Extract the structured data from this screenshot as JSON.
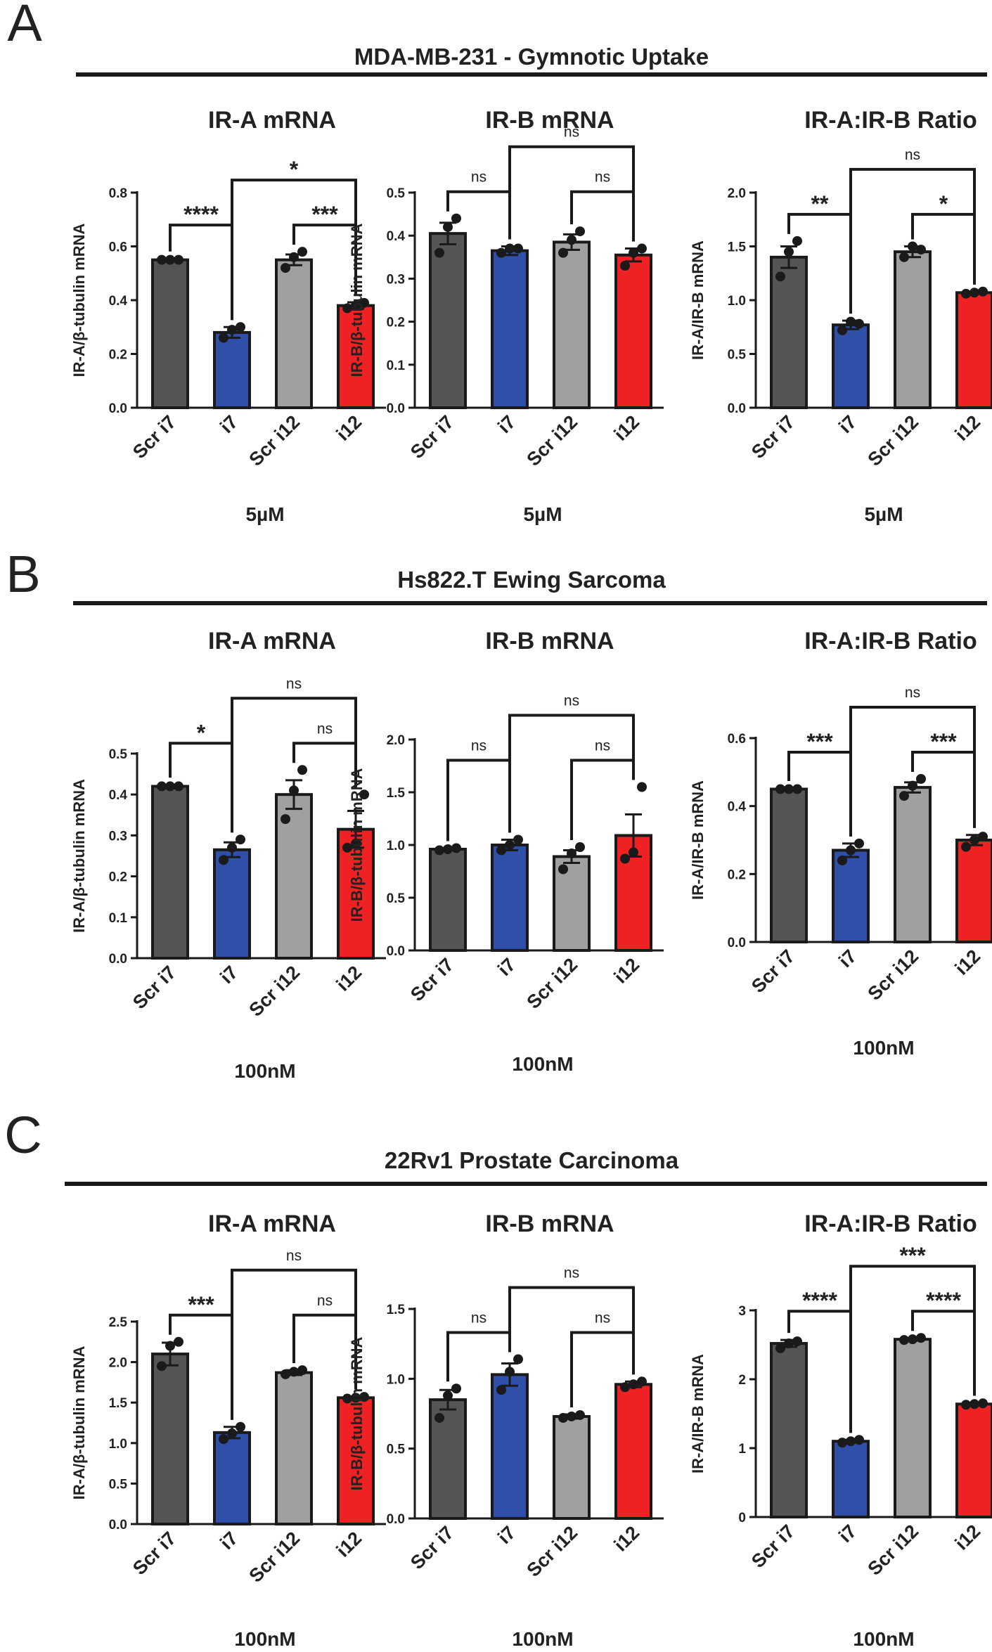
{
  "chart_data": [
    {
      "panel": "A",
      "section_title": "MDA-MB-231 - Gymnotic Uptake",
      "charts": [
        {
          "type": "bar",
          "title": "IR-A mRNA",
          "ylabel": "IR-A/β-tubulin mRNA",
          "xlabel": "5µM",
          "categories": [
            "Scr i7",
            "i7",
            "Scr i12",
            "i12"
          ],
          "values": [
            0.55,
            0.28,
            0.55,
            0.38
          ],
          "errors": [
            0.005,
            0.02,
            0.02,
            0.012
          ],
          "points": [
            [
              0.55,
              0.55,
              0.55
            ],
            [
              0.26,
              0.29,
              0.3
            ],
            [
              0.52,
              0.56,
              0.58
            ],
            [
              0.37,
              0.38,
              0.39
            ]
          ],
          "ylim": [
            0,
            0.8
          ],
          "ticks": [
            0.0,
            0.2,
            0.4,
            0.6,
            0.8
          ],
          "tick_labels": [
            "0.0",
            "0.2",
            "0.4",
            "0.6",
            "0.8"
          ],
          "annotations": [
            {
              "from": 0,
              "to": 1,
              "label": "****",
              "level": 1
            },
            {
              "from": 2,
              "to": 3,
              "label": "***",
              "level": 1
            },
            {
              "from": 1,
              "to": 3,
              "label": "*",
              "level": 2
            }
          ]
        },
        {
          "type": "bar",
          "title": "IR-B mRNA",
          "ylabel": "IR-B/β-tubulin mRNA",
          "xlabel": "5µM",
          "categories": [
            "Scr i7",
            "i7",
            "Scr i12",
            "i12"
          ],
          "values": [
            0.405,
            0.365,
            0.385,
            0.355
          ],
          "errors": [
            0.025,
            0.01,
            0.018,
            0.015
          ],
          "points": [
            [
              0.36,
              0.42,
              0.44
            ],
            [
              0.36,
              0.37,
              0.37
            ],
            [
              0.36,
              0.39,
              0.41
            ],
            [
              0.33,
              0.36,
              0.37
            ]
          ],
          "ylim": [
            0,
            0.5
          ],
          "ticks": [
            0.0,
            0.1,
            0.2,
            0.3,
            0.4,
            0.5
          ],
          "tick_labels": [
            "0.0",
            "0.1",
            "0.2",
            "0.3",
            "0.4",
            "0.5"
          ],
          "annotations": [
            {
              "from": 0,
              "to": 1,
              "label": "ns",
              "level": 1
            },
            {
              "from": 2,
              "to": 3,
              "label": "ns",
              "level": 1
            },
            {
              "from": 1,
              "to": 3,
              "label": "ns",
              "level": 2
            }
          ]
        },
        {
          "type": "bar",
          "title": "IR-A:IR-B Ratio",
          "ylabel": "IR-A/IR-B mRNA",
          "xlabel": "5µM",
          "categories": [
            "Scr i7",
            "i7",
            "Scr i12",
            "i12"
          ],
          "values": [
            1.4,
            0.77,
            1.45,
            1.07
          ],
          "errors": [
            0.1,
            0.04,
            0.05,
            0.01
          ],
          "points": [
            [
              1.22,
              1.45,
              1.55
            ],
            [
              0.72,
              0.8,
              0.78
            ],
            [
              1.4,
              1.5,
              1.47
            ],
            [
              1.06,
              1.07,
              1.08
            ]
          ],
          "ylim": [
            0,
            2.0
          ],
          "ticks": [
            0.0,
            0.5,
            1.0,
            1.5,
            2.0
          ],
          "tick_labels": [
            "0.0",
            "0.5",
            "1.0",
            "1.5",
            "2.0"
          ],
          "annotations": [
            {
              "from": 0,
              "to": 1,
              "label": "**",
              "level": 1
            },
            {
              "from": 2,
              "to": 3,
              "label": "*",
              "level": 1
            },
            {
              "from": 1,
              "to": 3,
              "label": "ns",
              "level": 2
            }
          ]
        }
      ]
    },
    {
      "panel": "B",
      "section_title": "Hs822.T Ewing Sarcoma",
      "charts": [
        {
          "type": "bar",
          "title": "IR-A mRNA",
          "ylabel": "IR-A/β-tubulin mRNA",
          "xlabel": "100nM",
          "categories": [
            "Scr i7",
            "i7",
            "Scr i12",
            "i12"
          ],
          "values": [
            0.42,
            0.265,
            0.4,
            0.315
          ],
          "errors": [
            0.004,
            0.018,
            0.035,
            0.045
          ],
          "points": [
            [
              0.42,
              0.42,
              0.42
            ],
            [
              0.24,
              0.27,
              0.29
            ],
            [
              0.34,
              0.41,
              0.46
            ],
            [
              0.27,
              0.28,
              0.4
            ]
          ],
          "ylim": [
            0,
            0.5
          ],
          "ticks": [
            0.0,
            0.1,
            0.2,
            0.3,
            0.4,
            0.5
          ],
          "tick_labels": [
            "0.0",
            "0.1",
            "0.2",
            "0.3",
            "0.4",
            "0.5"
          ],
          "annotations": [
            {
              "from": 0,
              "to": 1,
              "label": "*",
              "level": 1
            },
            {
              "from": 2,
              "to": 3,
              "label": "ns",
              "level": 1
            },
            {
              "from": 1,
              "to": 3,
              "label": "ns",
              "level": 2
            }
          ]
        },
        {
          "type": "bar",
          "title": "IR-B mRNA",
          "ylabel": "IR-B/β-tubulin mRNA",
          "xlabel": "100nM",
          "categories": [
            "Scr i7",
            "i7",
            "Scr i12",
            "i12"
          ],
          "values": [
            0.96,
            1.0,
            0.89,
            1.09
          ],
          "errors": [
            0.01,
            0.05,
            0.06,
            0.2
          ],
          "points": [
            [
              0.95,
              0.96,
              0.97
            ],
            [
              0.95,
              1.0,
              1.05
            ],
            [
              0.77,
              0.92,
              0.98
            ],
            [
              0.87,
              0.93,
              1.55
            ]
          ],
          "ylim": [
            0,
            2.0
          ],
          "ticks": [
            0.0,
            0.5,
            1.0,
            1.5,
            2.0
          ],
          "tick_labels": [
            "0.0",
            "0.5",
            "1.0",
            "1.5",
            "2.0"
          ],
          "annotations": [
            {
              "from": 0,
              "to": 1,
              "label": "ns",
              "level": 1
            },
            {
              "from": 2,
              "to": 3,
              "label": "ns",
              "level": 1
            },
            {
              "from": 1,
              "to": 3,
              "label": "ns",
              "level": 2
            }
          ]
        },
        {
          "type": "bar",
          "title": "IR-A:IR-B Ratio",
          "ylabel": "IR-A/IR-B mRNA",
          "xlabel": "100nM",
          "categories": [
            "Scr i7",
            "i7",
            "Scr i12",
            "i12"
          ],
          "values": [
            0.45,
            0.27,
            0.455,
            0.3
          ],
          "errors": [
            0.003,
            0.02,
            0.015,
            0.015
          ],
          "points": [
            [
              0.45,
              0.45,
              0.45
            ],
            [
              0.24,
              0.27,
              0.29
            ],
            [
              0.43,
              0.46,
              0.48
            ],
            [
              0.28,
              0.3,
              0.31
            ]
          ],
          "ylim": [
            0,
            0.6
          ],
          "ticks": [
            0.0,
            0.2,
            0.4,
            0.6
          ],
          "tick_labels": [
            "0.0",
            "0.2",
            "0.4",
            "0.6"
          ],
          "annotations": [
            {
              "from": 0,
              "to": 1,
              "label": "***",
              "level": 1
            },
            {
              "from": 2,
              "to": 3,
              "label": "***",
              "level": 1
            },
            {
              "from": 1,
              "to": 3,
              "label": "ns",
              "level": 2
            }
          ]
        }
      ]
    },
    {
      "panel": "C",
      "section_title": "22Rv1 Prostate Carcinoma",
      "charts": [
        {
          "type": "bar",
          "title": "IR-A mRNA",
          "ylabel": "IR-A/β-tubulin mRNA",
          "xlabel": "100nM",
          "categories": [
            "Scr i7",
            "i7",
            "Scr i12",
            "i12"
          ],
          "values": [
            2.1,
            1.13,
            1.87,
            1.56
          ],
          "errors": [
            0.14,
            0.07,
            0.03,
            0.015
          ],
          "points": [
            [
              1.95,
              2.2,
              2.25
            ],
            [
              1.05,
              1.12,
              1.2
            ],
            [
              1.85,
              1.88,
              1.9
            ],
            [
              1.55,
              1.56,
              1.57
            ]
          ],
          "ylim": [
            0,
            2.5
          ],
          "ticks": [
            0.0,
            0.5,
            1.0,
            1.5,
            2.0,
            2.5
          ],
          "tick_labels": [
            "0.0",
            "0.5",
            "1.0",
            "1.5",
            "2.0",
            "2.5"
          ],
          "annotations": [
            {
              "from": 0,
              "to": 1,
              "label": "***",
              "level": 1
            },
            {
              "from": 2,
              "to": 3,
              "label": "ns",
              "level": 1
            },
            {
              "from": 1,
              "to": 3,
              "label": "ns",
              "level": 2
            }
          ]
        },
        {
          "type": "bar",
          "title": "IR-B mRNA",
          "ylabel": "IR-B/β-tubulin mRNA",
          "xlabel": "100nM",
          "categories": [
            "Scr i7",
            "i7",
            "Scr i12",
            "i12"
          ],
          "values": [
            0.85,
            1.03,
            0.73,
            0.96
          ],
          "errors": [
            0.07,
            0.08,
            0.015,
            0.02
          ],
          "points": [
            [
              0.72,
              0.88,
              0.93
            ],
            [
              0.92,
              1.05,
              1.14
            ],
            [
              0.72,
              0.73,
              0.74
            ],
            [
              0.94,
              0.96,
              0.98
            ]
          ],
          "ylim": [
            0,
            1.5
          ],
          "ticks": [
            0.0,
            0.5,
            1.0,
            1.5
          ],
          "tick_labels": [
            "0.0",
            "0.5",
            "1.0",
            "1.5"
          ],
          "annotations": [
            {
              "from": 0,
              "to": 1,
              "label": "ns",
              "level": 1
            },
            {
              "from": 2,
              "to": 3,
              "label": "ns",
              "level": 1
            },
            {
              "from": 1,
              "to": 3,
              "label": "ns",
              "level": 2
            }
          ]
        },
        {
          "type": "bar",
          "title": "IR-A:IR-B Ratio",
          "ylabel": "IR-A/IR-B mRNA",
          "xlabel": "100nM",
          "categories": [
            "Scr i7",
            "i7",
            "Scr i12",
            "i12"
          ],
          "values": [
            2.52,
            1.1,
            2.58,
            1.64
          ],
          "errors": [
            0.05,
            0.02,
            0.02,
            0.02
          ],
          "points": [
            [
              2.45,
              2.52,
              2.55
            ],
            [
              1.08,
              1.1,
              1.12
            ],
            [
              2.57,
              2.58,
              2.6
            ],
            [
              1.63,
              1.64,
              1.65
            ]
          ],
          "ylim": [
            0,
            3
          ],
          "ticks": [
            0,
            1,
            2,
            3
          ],
          "tick_labels": [
            "0",
            "1",
            "2",
            "3"
          ],
          "annotations": [
            {
              "from": 0,
              "to": 1,
              "label": "****",
              "level": 1
            },
            {
              "from": 2,
              "to": 3,
              "label": "****",
              "level": 1
            },
            {
              "from": 1,
              "to": 3,
              "label": "***",
              "level": 2
            }
          ]
        }
      ]
    }
  ],
  "colors": [
    "#555555",
    "#2f4fa8",
    "#a0a0a0",
    "#ee2222"
  ],
  "edge_color": "#1a1a1a"
}
